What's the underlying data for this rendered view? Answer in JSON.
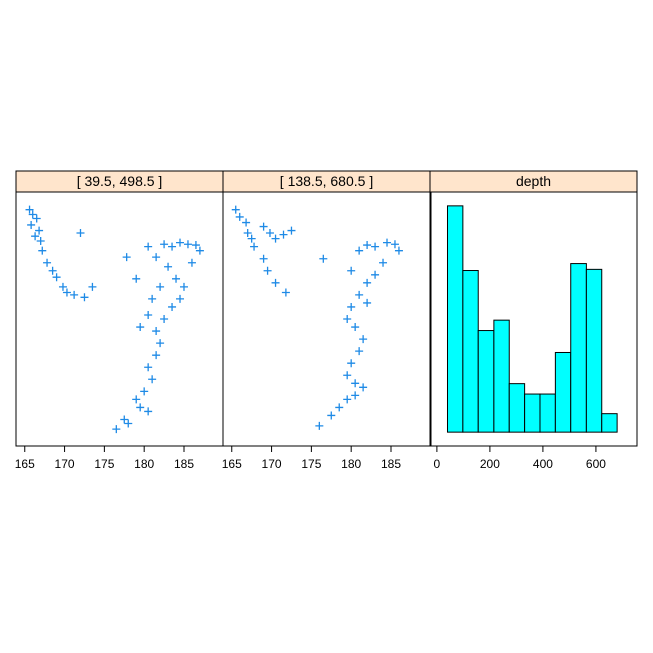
{
  "chart_data": [
    {
      "type": "scatter",
      "title": "[ 39.5, 498.5 ]",
      "color": "#1e8ae6",
      "x": [
        165.6,
        166.0,
        166.5,
        165.8,
        166.8,
        166.3,
        167.0,
        167.2,
        167.8,
        168.5,
        169.0,
        169.8,
        170.3,
        171.2,
        172.5,
        173.5,
        172.0,
        177.8,
        179.0,
        180.5,
        181.5,
        182.5,
        183.5,
        184.5,
        185.5,
        186.5,
        187.0,
        183.0,
        184.0,
        185.0,
        186.0,
        182.0,
        181.0,
        180.5,
        179.5,
        181.5,
        183.5,
        184.5,
        182.0,
        181.5,
        180.5,
        181.0,
        180.0,
        179.5,
        180.5,
        178.0,
        176.5,
        177.5,
        179.0,
        182.5
      ],
      "y": [
        -10.9,
        -11.5,
        -12.0,
        -12.8,
        -13.5,
        -14.2,
        -14.8,
        -16.0,
        -17.5,
        -18.5,
        -19.3,
        -20.5,
        -21.2,
        -21.5,
        -21.8,
        -20.5,
        -13.8,
        -16.8,
        -19.5,
        -15.5,
        -16.8,
        -15.2,
        -15.5,
        -15.0,
        -15.2,
        -15.3,
        -16.0,
        -18.0,
        -19.5,
        -20.5,
        -17.5,
        -20.5,
        -22.0,
        -24.0,
        -25.5,
        -26.0,
        -23.0,
        -22.0,
        -27.5,
        -29.0,
        -30.5,
        -32.0,
        -33.5,
        -35.5,
        -36.0,
        -37.5,
        -38.2,
        -37.0,
        -34.5,
        -24.5
      ],
      "xlim": [
        163.9,
        189.9
      ],
      "ylim": [
        -40.3,
        -8.7
      ],
      "xticks": [
        165,
        170,
        175,
        180,
        185
      ]
    },
    {
      "type": "scatter",
      "title": "[ 138.5, 680.5 ]",
      "color": "#1e8ae6",
      "x": [
        165.5,
        166.0,
        166.8,
        167.0,
        167.5,
        169.0,
        169.8,
        170.5,
        171.5,
        172.5,
        167.8,
        169.0,
        169.5,
        170.5,
        171.8,
        176.5,
        180.0,
        181.0,
        182.0,
        183.0,
        184.5,
        185.5,
        186.0,
        184.0,
        183.0,
        182.0,
        181.0,
        180.0,
        179.5,
        180.5,
        182.0,
        181.5,
        181.0,
        180.0,
        179.5,
        180.5,
        181.5,
        179.5,
        178.5,
        177.5,
        176.0,
        180.5
      ],
      "y": [
        -10.9,
        -11.8,
        -12.5,
        -13.8,
        -14.5,
        -13.0,
        -13.8,
        -14.5,
        -14.0,
        -13.5,
        -15.5,
        -17.0,
        -18.5,
        -20.0,
        -21.2,
        -17.0,
        -18.5,
        -16.0,
        -15.3,
        -15.5,
        -15.0,
        -15.2,
        -16.0,
        -17.5,
        -19.0,
        -20.0,
        -21.5,
        -23.0,
        -24.5,
        -25.5,
        -22.5,
        -27.0,
        -28.5,
        -30.0,
        -31.5,
        -32.5,
        -33.0,
        -34.5,
        -35.5,
        -36.5,
        -37.8,
        -34.0
      ],
      "xlim": [
        163.9,
        189.9
      ],
      "ylim": [
        -40.3,
        -8.7
      ],
      "xticks": [
        165,
        170,
        175,
        180,
        185
      ]
    },
    {
      "type": "histogram",
      "title": "depth",
      "color": "#00ffff",
      "bins": [
        40,
        98,
        156,
        215,
        273,
        331,
        389,
        447,
        505,
        564,
        622,
        680
      ],
      "values": [
        19.6,
        14.0,
        8.8,
        9.7,
        4.2,
        3.3,
        3.3,
        6.9,
        14.6,
        14.1,
        1.6
      ],
      "xlim": [
        -26,
        755
      ],
      "ylim": [
        -1.2,
        20.8
      ],
      "xticks": [
        0,
        200,
        400,
        600
      ]
    }
  ]
}
